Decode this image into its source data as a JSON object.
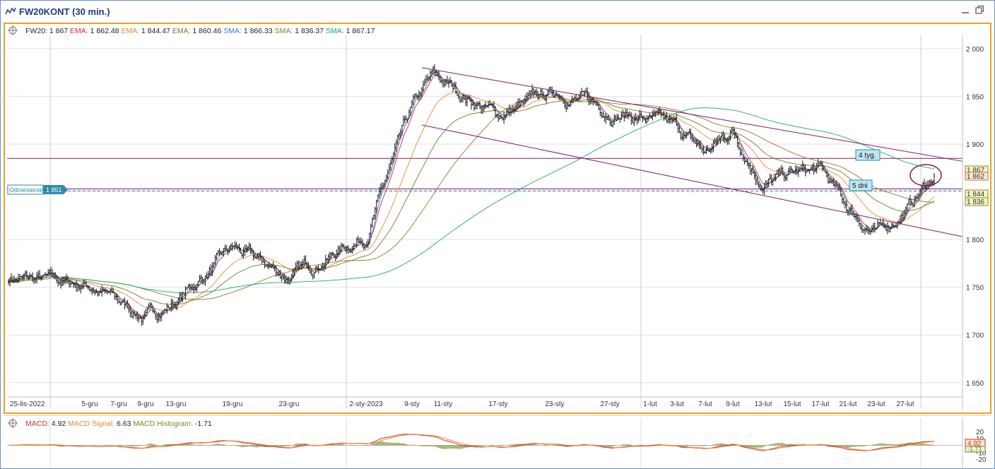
{
  "window": {
    "title": "FW20KONT (30 min.)",
    "minimize_icon": "minimize-icon",
    "maximize_icon": "maximize-icon"
  },
  "legend": {
    "symbol": "FW20:",
    "symbol_value": "1 867",
    "items": [
      {
        "label": "EMA:",
        "value": "1 862.48",
        "color": "#d22e2e"
      },
      {
        "label": "EMA:",
        "value": "1 844.47",
        "color": "#e58a3c"
      },
      {
        "label": "EMA:",
        "value": "1 860.46",
        "color": "#6f7a2a"
      },
      {
        "label": "SMA:",
        "value": "1 866.33",
        "color": "#3a7bd5"
      },
      {
        "label": "SMA:",
        "value": "1 836.37",
        "color": "#8a7a2a"
      },
      {
        "label": "SMA:",
        "value": "1 867.17",
        "color": "#1ea86b"
      }
    ]
  },
  "reference_label": {
    "text": "Odniesienie",
    "value": "1 851"
  },
  "annotations": {
    "weeks": "4 tyg.",
    "days": "5 dni"
  },
  "price_tags": [
    {
      "value": "1 867",
      "bg": "#f4f4c0",
      "border": "#8a8a2a"
    },
    {
      "value": "1 862",
      "bg": "#fde7d8",
      "border": "#c0702a"
    },
    {
      "value": "1 844",
      "bg": "#f4f4c0",
      "border": "#8a8a2a"
    },
    {
      "value": "1 836",
      "bg": "#f4f4c0",
      "border": "#8a8a2a"
    }
  ],
  "macd_legend": {
    "macd_label": "MACD:",
    "macd_value": "4.92",
    "signal_label": "MACD Signal:",
    "signal_value": "6.63",
    "hist_label": "MACD Histogram:",
    "hist_value": "-1.71"
  },
  "macd_tags": {
    "macd": "4.92",
    "hist": "-1.71"
  },
  "chart_data": [
    {
      "type": "line",
      "series_kind": "candlestick-ohlc",
      "y_axis": {
        "ticks": [
          "2 000",
          "1 950",
          "1 900",
          "1 850",
          "1 800",
          "1 750",
          "1 700",
          "1 650"
        ],
        "tick_values": [
          2000,
          1950,
          1900,
          1850,
          1800,
          1750,
          1700,
          1650
        ],
        "ylim": [
          1638,
          2011
        ]
      },
      "x_axis": {
        "labels": [
          "25-lis-2022",
          "5-gru",
          "7-gru",
          "9-gru",
          "13-gru",
          "19-gru",
          "23-gru",
          "2-sty-2023",
          "9-sty",
          "11-sty",
          "17-sty",
          "23-sty",
          "27-sty",
          "1-lut",
          "3-lut",
          "7-lut",
          "9-lut",
          "13-lut",
          "15-lut",
          "17-lut",
          "21-lut",
          "23-lut",
          "27-lut"
        ]
      },
      "x_anchor_labels": [
        "25-lis-2022",
        "5-gru",
        "9-gru",
        "13-gru",
        "19-gru",
        "23-gru",
        "2-sty-2023",
        "9-sty",
        "11-sty",
        "17-sty",
        "23-sty",
        "27-sty",
        "1-lut",
        "3-lut",
        "7-lut",
        "9-lut",
        "13-lut",
        "15-lut",
        "17-lut",
        "21-lut",
        "23-lut",
        "27-lut",
        "end"
      ],
      "x_anchor_prices": [
        1760,
        1752,
        1718,
        1735,
        1790,
        1760,
        1805,
        1935,
        1970,
        1930,
        1955,
        1935,
        1925,
        1915,
        1890,
        1915,
        1858,
        1868,
        1872,
        1832,
        1805,
        1830,
        1868
      ],
      "price_series": {
        "name": "FW20",
        "last": 1867
      },
      "horizontal_levels": [
        1885,
        1853
      ],
      "reference_level": 1851,
      "channel": {
        "upper": [
          [
            9,
            1980
          ],
          [
            80,
            1882
          ]
        ],
        "lower": [
          [
            9,
            1920
          ],
          [
            80,
            1803
          ]
        ]
      },
      "moving_averages": [
        {
          "type": "EMA",
          "value": 1862.48,
          "color": "#d22e2e"
        },
        {
          "type": "EMA",
          "value": 1844.47,
          "color": "#e58a3c"
        },
        {
          "type": "EMA",
          "value": 1860.46,
          "color": "#6f7a2a"
        },
        {
          "type": "SMA",
          "value": 1866.33,
          "color": "#3a7bd5"
        },
        {
          "type": "SMA",
          "value": 1836.37,
          "color": "#8a7a2a"
        },
        {
          "type": "SMA",
          "value": 1867.17,
          "color": "#1ea86b"
        }
      ],
      "grid": true
    },
    {
      "type": "line",
      "series_kind": "macd",
      "y_axis": {
        "ticks": [
          "20",
          "10",
          "-10",
          "-20"
        ],
        "tick_values": [
          20,
          10,
          -10,
          -20
        ],
        "ylim": [
          -22,
          22
        ]
      },
      "series": [
        {
          "name": "MACD",
          "last": 4.92,
          "color": "#d22e2e"
        },
        {
          "name": "MACD Signal",
          "last": 6.63,
          "color": "#e58a3c"
        },
        {
          "name": "MACD Histogram",
          "last": -1.71,
          "color": "#6f8a1e"
        }
      ]
    }
  ]
}
